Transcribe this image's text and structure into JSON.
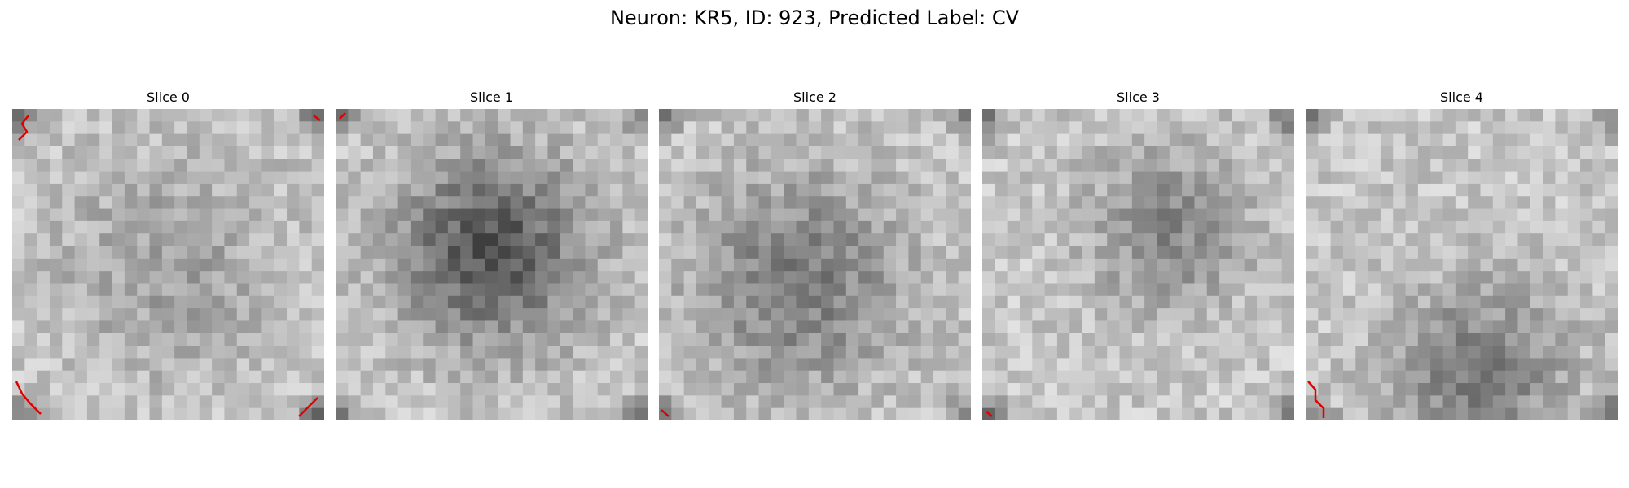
{
  "figure": {
    "title": "Neuron: KR5, ID: 923, Predicted Label: CV",
    "colormap": "gray",
    "contour_color": "#e00000"
  },
  "slices": [
    {
      "title": "Slice 0",
      "blob": [
        0.5,
        0.5,
        0.45
      ],
      "darkness": 0.15,
      "seed": 11
    },
    {
      "title": "Slice 1",
      "blob": [
        0.5,
        0.45,
        0.38
      ],
      "darkness": 0.45,
      "seed": 23
    },
    {
      "title": "Slice 2",
      "blob": [
        0.45,
        0.55,
        0.42
      ],
      "darkness": 0.3,
      "seed": 37
    },
    {
      "title": "Slice 3",
      "blob": [
        0.6,
        0.38,
        0.32
      ],
      "darkness": 0.25,
      "seed": 41
    },
    {
      "title": "Slice 4",
      "blob": [
        0.55,
        0.85,
        0.35
      ],
      "darkness": 0.3,
      "seed": 59
    }
  ]
}
